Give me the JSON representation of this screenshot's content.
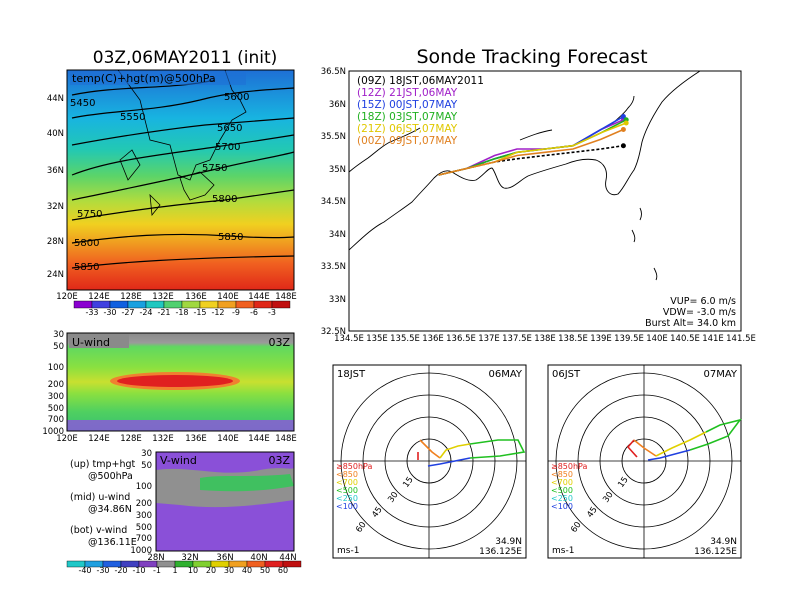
{
  "left_title": "03Z,06MAY2011 (init)",
  "right_title": "Sonde Tracking Forecast",
  "panel_500": {
    "label": "temp(C)+hgt(m)@500hPa",
    "lon_ticks": [
      "120E",
      "124E",
      "128E",
      "132E",
      "136E",
      "140E",
      "144E",
      "148E"
    ],
    "lat_ticks": [
      "24N",
      "28N",
      "32N",
      "36N",
      "40N",
      "44N"
    ],
    "contour_labels": [
      "5450",
      "5550",
      "5600",
      "5650",
      "5700",
      "5750",
      "5750",
      "5800",
      "5800",
      "5850",
      "5850"
    ]
  },
  "temp_colorbar": [
    "-33",
    "-30",
    "-27",
    "-24",
    "-21",
    "-18",
    "-15",
    "-12",
    "-9",
    "-6",
    "-3"
  ],
  "panel_uwind": {
    "label": "U-wind",
    "time": "03Z",
    "p_ticks": [
      "30",
      "50",
      "100",
      "200",
      "300",
      "500",
      "700",
      "1000"
    ],
    "lon_ticks": [
      "120E",
      "124E",
      "128E",
      "132E",
      "136E",
      "140E",
      "144E",
      "148E"
    ]
  },
  "panel_vwind": {
    "label": "V-wind",
    "time": "03Z",
    "p_ticks": [
      "30",
      "50",
      "100",
      "200",
      "300",
      "500",
      "700",
      "1000"
    ],
    "lat_ticks": [
      "28N",
      "32N",
      "36N",
      "40N",
      "44N"
    ]
  },
  "legend_notes": [
    "(up) tmp+hgt",
    "@500hPa",
    "(mid) u-wind",
    "@34.86N",
    "(bot) v-wind",
    "@136.11E"
  ],
  "wind_colorbar": [
    "-40",
    "-30",
    "-20",
    "-10",
    "-1",
    "1",
    "10",
    "20",
    "30",
    "40",
    "50",
    "60"
  ],
  "track_map": {
    "legend": [
      {
        "text": "(09Z)  18JST,06MAY2011",
        "color": "#000000"
      },
      {
        "text": "(12Z)  21JST,06MAY",
        "color": "#a020c8"
      },
      {
        "text": "(15Z)  00JST,07MAY",
        "color": "#2040e0"
      },
      {
        "text": "(18Z)  03JST,07MAY",
        "color": "#20b020"
      },
      {
        "text": "(21Z)  06JST,07MAY",
        "color": "#e0c800"
      },
      {
        "text": "(00Z)  09JST,07MAY",
        "color": "#e08020"
      }
    ],
    "lon_ticks": [
      "134.5E",
      "135E",
      "135.5E",
      "136E",
      "136.5E",
      "137E",
      "137.5E",
      "138E",
      "138.5E",
      "139E",
      "139.5E",
      "140E",
      "140.5E",
      "141E",
      "141.5E"
    ],
    "lat_ticks": [
      "32.5N",
      "33N",
      "33.5N",
      "34N",
      "34.5N",
      "35N",
      "35.5N",
      "36N",
      "36.5N"
    ],
    "info": [
      "VUP=  6.0  m/s",
      "VDW=  -3.0  m/s",
      "Burst Alt=  34.0  km"
    ]
  },
  "hodo_left": {
    "time": "18JST",
    "date": "06MAY",
    "rings": [
      "15",
      "30",
      "45",
      "60"
    ],
    "units": "ms-1",
    "lat": "34.9N",
    "lon": "136.125E"
  },
  "hodo_right": {
    "time": "06JST",
    "date": "07MAY",
    "rings": [
      "15",
      "30",
      "45",
      "60"
    ],
    "units": "ms-1",
    "lat": "34.9N",
    "lon": "136.125E"
  },
  "hodo_legend": [
    {
      "text": "≥850hPa",
      "color": "#e02020"
    },
    {
      "text": "<850",
      "color": "#f08020"
    },
    {
      "text": "<700",
      "color": "#e0d000"
    },
    {
      "text": "<500",
      "color": "#20c020"
    },
    {
      "text": "<250",
      "color": "#20c8c8"
    },
    {
      "text": "<100",
      "color": "#2040e0"
    }
  ],
  "chart_data": [
    {
      "type": "line",
      "title": "Sonde Tracking Forecast",
      "xlabel": "",
      "ylabel": "",
      "xlim": [
        134.5,
        141.5
      ],
      "ylim": [
        32.5,
        36.5
      ],
      "series": [
        {
          "name": "(09Z)  18JST,06MAY2011",
          "x": [
            136.1,
            136.6,
            137.1,
            137.5,
            138.0,
            138.5,
            139.0,
            139.4
          ],
          "y": [
            34.9,
            35.0,
            35.1,
            35.15,
            35.2,
            35.25,
            35.3,
            35.35
          ]
        },
        {
          "name": "(12Z)  21JST,06MAY",
          "x": [
            136.1,
            136.6,
            137.1,
            137.5,
            138.0,
            138.5,
            139.0,
            139.4
          ],
          "y": [
            34.9,
            35.0,
            35.2,
            35.3,
            35.3,
            35.35,
            35.6,
            35.75
          ]
        },
        {
          "name": "(15Z)  00JST,07MAY",
          "x": [
            136.1,
            136.6,
            137.1,
            137.5,
            138.0,
            138.5,
            139.0,
            139.4
          ],
          "y": [
            34.9,
            35.0,
            35.15,
            35.25,
            35.3,
            35.35,
            35.6,
            35.8
          ]
        },
        {
          "name": "(18Z)  03JST,07MAY",
          "x": [
            136.1,
            136.6,
            137.1,
            137.5,
            138.0,
            138.5,
            139.0,
            139.45
          ],
          "y": [
            34.9,
            35.0,
            35.15,
            35.25,
            35.3,
            35.35,
            35.55,
            35.75
          ]
        },
        {
          "name": "(21Z)  06JST,07MAY",
          "x": [
            136.1,
            136.6,
            137.1,
            137.5,
            138.0,
            138.5,
            139.0,
            139.45
          ],
          "y": [
            34.9,
            35.0,
            35.1,
            35.25,
            35.3,
            35.35,
            35.55,
            35.7
          ]
        },
        {
          "name": "(00Z)  09JST,07MAY",
          "x": [
            136.1,
            136.6,
            137.1,
            137.5,
            138.0,
            138.5,
            139.0,
            139.4
          ],
          "y": [
            34.9,
            35.0,
            35.1,
            35.2,
            35.25,
            35.3,
            35.45,
            35.6
          ]
        }
      ]
    }
  ]
}
